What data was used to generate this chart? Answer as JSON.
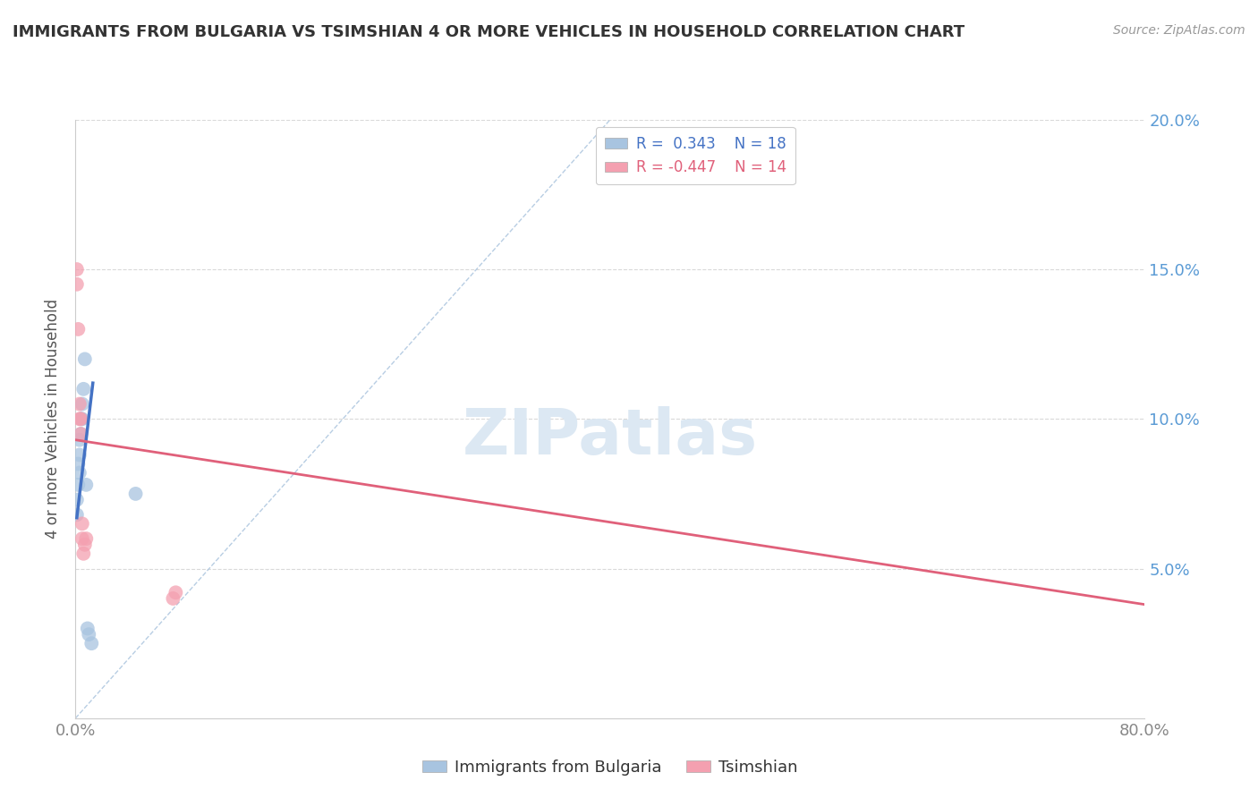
{
  "title": "IMMIGRANTS FROM BULGARIA VS TSIMSHIAN 4 OR MORE VEHICLES IN HOUSEHOLD CORRELATION CHART",
  "source_text": "Source: ZipAtlas.com",
  "ylabel": "4 or more Vehicles in Household",
  "xlim": [
    0.0,
    0.8
  ],
  "ylim": [
    0.0,
    0.2
  ],
  "xticks": [
    0.0,
    0.8
  ],
  "xticklabels": [
    "0.0%",
    "80.0%"
  ],
  "yticks": [
    0.05,
    0.1,
    0.15,
    0.2
  ],
  "grid_color": "#d0d0d0",
  "background_color": "#ffffff",
  "bulgaria_color": "#a8c4e0",
  "tsimshian_color": "#f4a0b0",
  "bulgaria_R": 0.343,
  "bulgaria_N": 18,
  "tsimshian_R": -0.447,
  "tsimshian_N": 14,
  "bulgaria_scatter_x": [
    0.001,
    0.001,
    0.002,
    0.002,
    0.003,
    0.003,
    0.003,
    0.004,
    0.004,
    0.005,
    0.005,
    0.006,
    0.007,
    0.008,
    0.009,
    0.01,
    0.012,
    0.045
  ],
  "bulgaria_scatter_y": [
    0.073,
    0.068,
    0.078,
    0.085,
    0.082,
    0.088,
    0.093,
    0.095,
    0.1,
    0.1,
    0.105,
    0.11,
    0.12,
    0.078,
    0.03,
    0.028,
    0.025,
    0.075
  ],
  "tsimshian_scatter_x": [
    0.001,
    0.001,
    0.002,
    0.003,
    0.003,
    0.004,
    0.004,
    0.005,
    0.005,
    0.006,
    0.007,
    0.008,
    0.073,
    0.075
  ],
  "tsimshian_scatter_y": [
    0.145,
    0.15,
    0.13,
    0.1,
    0.105,
    0.095,
    0.1,
    0.06,
    0.065,
    0.055,
    0.058,
    0.06,
    0.04,
    0.042
  ],
  "bulgaria_line_x": [
    0.001,
    0.013
  ],
  "bulgaria_line_y": [
    0.067,
    0.112
  ],
  "tsimshian_line_x": [
    0.0,
    0.8
  ],
  "tsimshian_line_y": [
    0.093,
    0.038
  ],
  "ref_line_x": [
    0.0,
    0.4
  ],
  "ref_line_y": [
    0.0,
    0.2
  ],
  "title_color": "#333333",
  "source_color": "#999999",
  "axis_label_color": "#555555",
  "tick_color": "#888888",
  "right_tick_color": "#5b9bd5",
  "bulgaria_line_color": "#4472c4",
  "tsimshian_line_color": "#e0607a",
  "ref_line_color": "#b0c8e0",
  "watermark_text": "ZIPatlas",
  "watermark_color": "#dce8f3"
}
